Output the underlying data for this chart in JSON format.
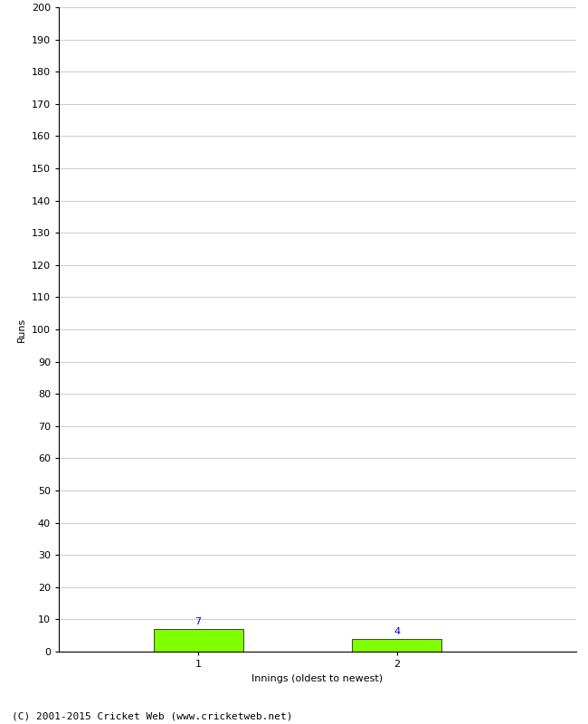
{
  "xlabel": "Innings (oldest to newest)",
  "ylabel": "Runs",
  "categories": [
    1,
    2
  ],
  "values": [
    7,
    4
  ],
  "bar_color": "#7fff00",
  "bar_edge_color": "#000000",
  "ylim": [
    0,
    200
  ],
  "yticks": [
    0,
    10,
    20,
    30,
    40,
    50,
    60,
    70,
    80,
    90,
    100,
    110,
    120,
    130,
    140,
    150,
    160,
    170,
    180,
    190,
    200
  ],
  "label_color": "#0000cc",
  "background_color": "#ffffff",
  "grid_color": "#cccccc",
  "footer": "(C) 2001-2015 Cricket Web (www.cricketweb.net)",
  "label_fontsize": 8,
  "axis_fontsize": 8,
  "ylabel_fontsize": 8,
  "xlabel_fontsize": 8,
  "footer_fontsize": 8,
  "bar_width": 0.45,
  "xlim": [
    0.3,
    2.9
  ]
}
